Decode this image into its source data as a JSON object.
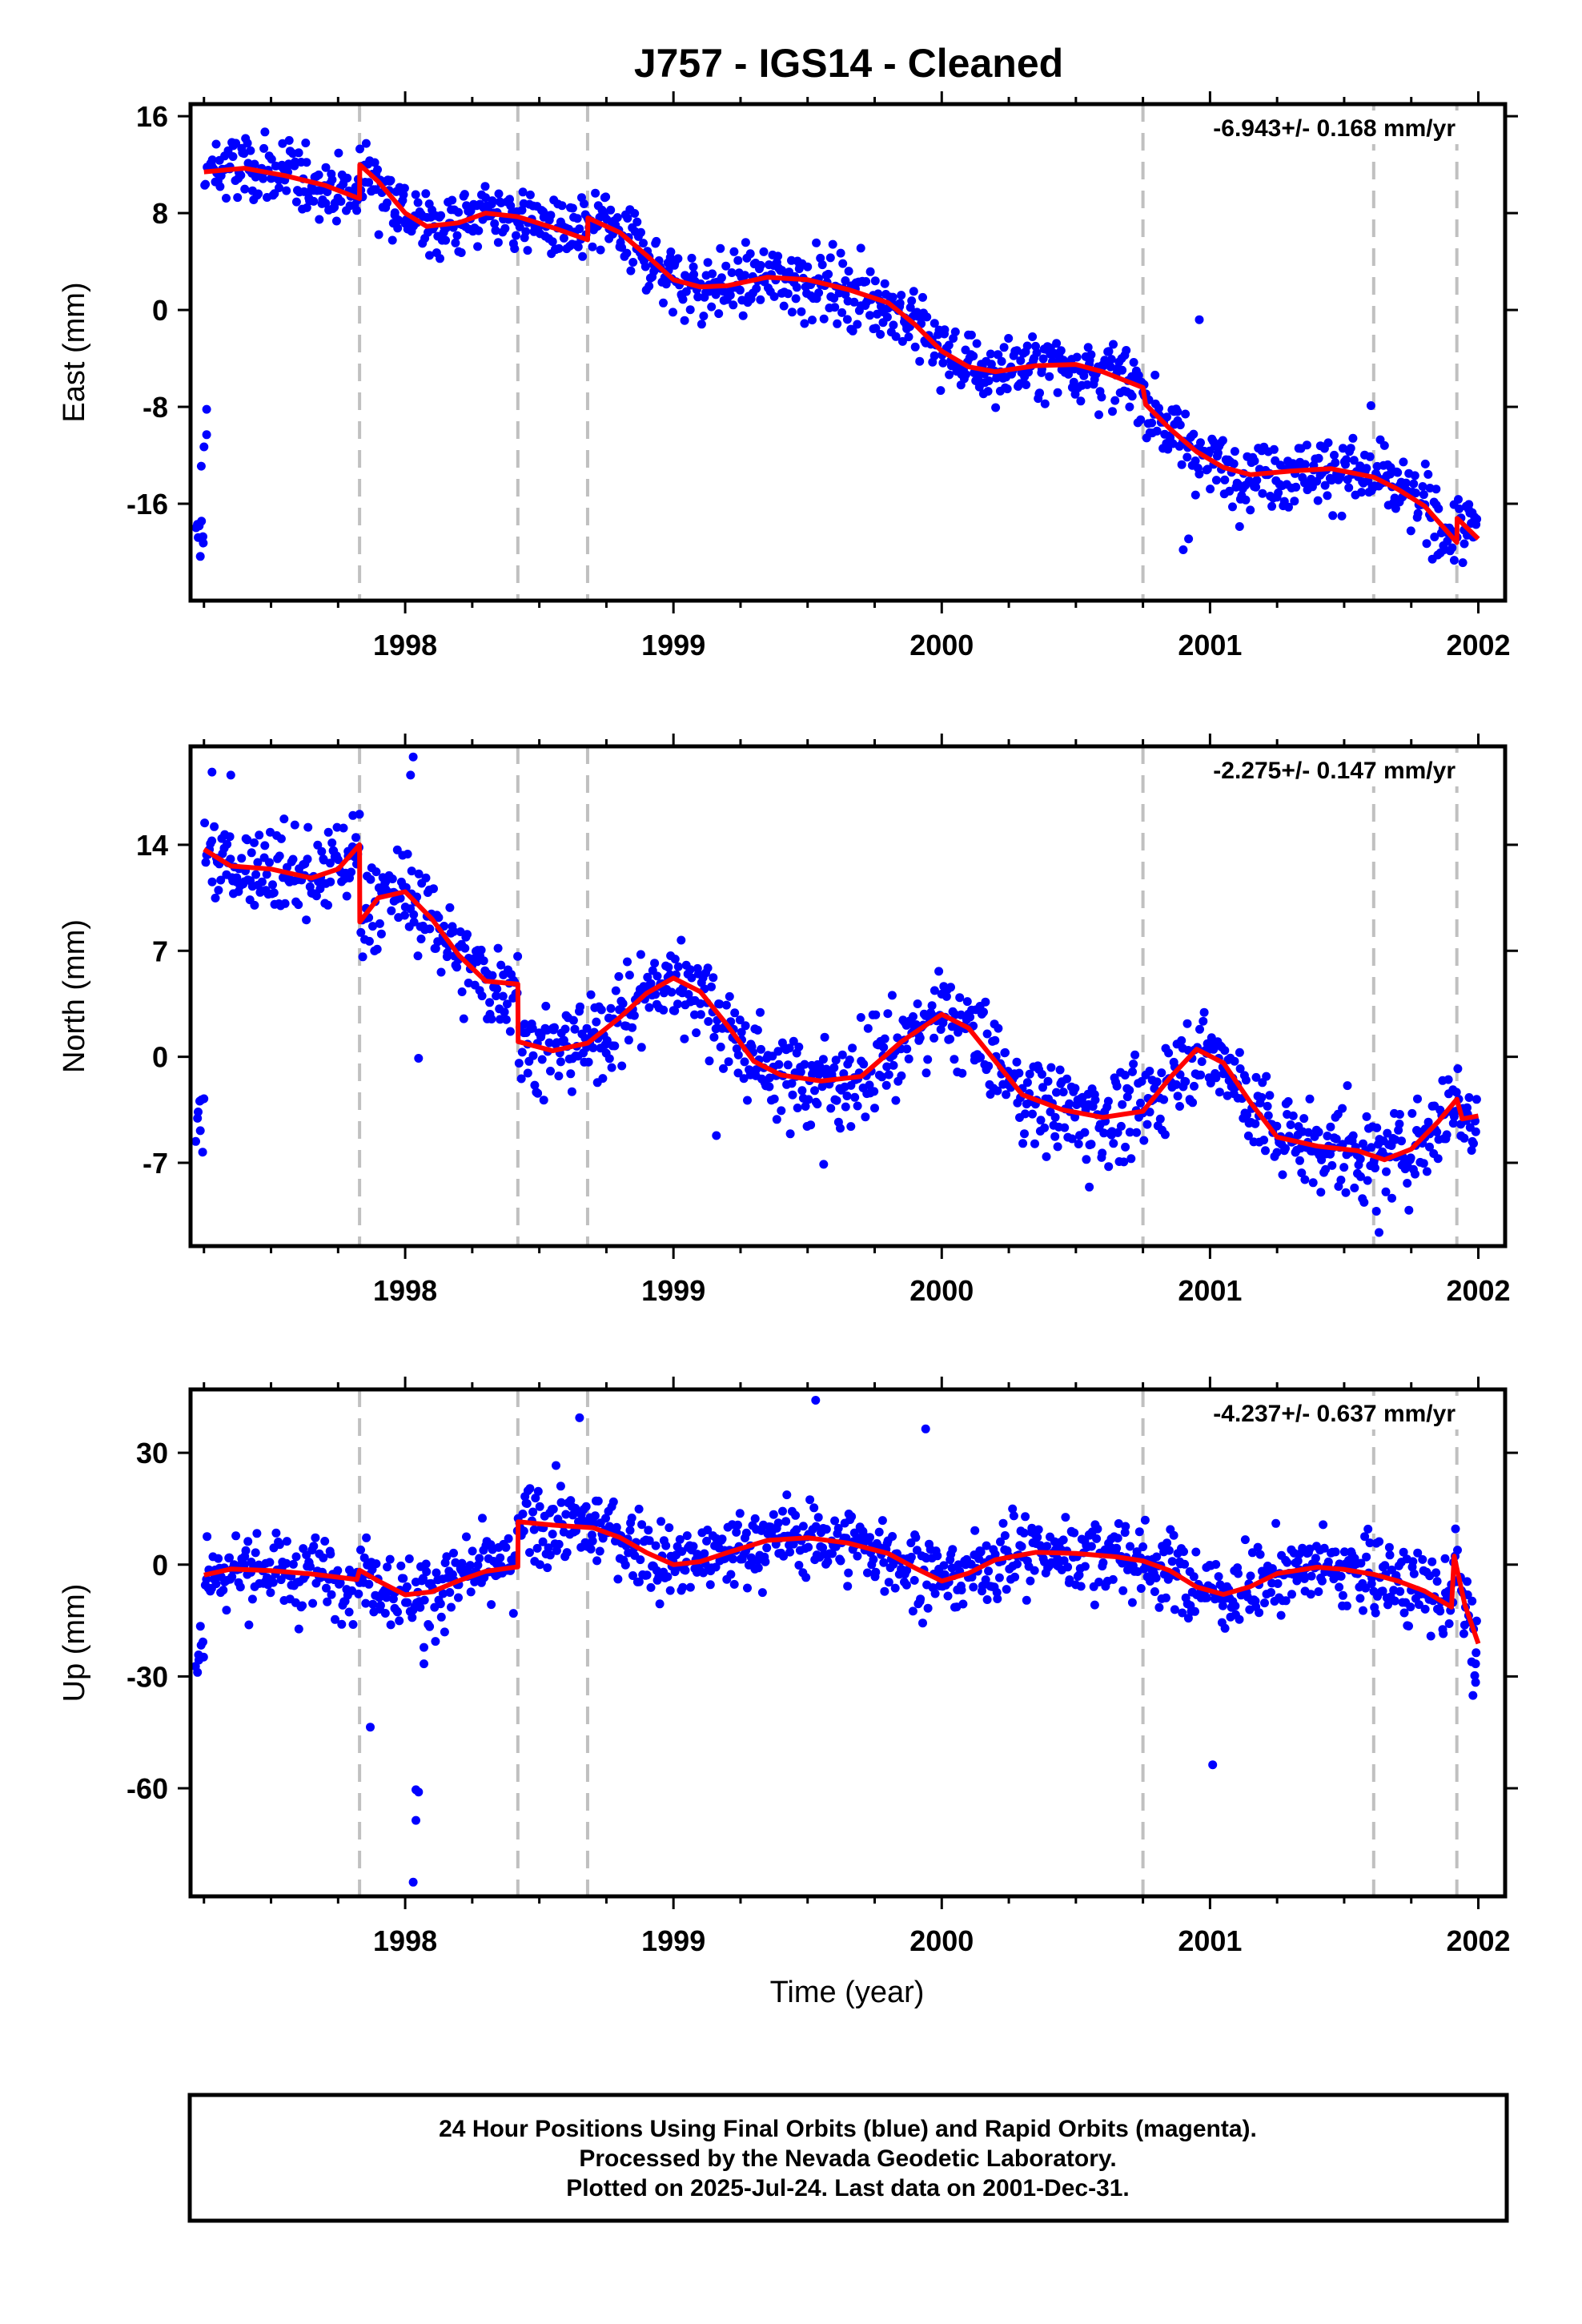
{
  "title": "J757  - IGS14 - Cleaned",
  "xlabel": "Time (year)",
  "x_ticks": [
    "1998",
    "1999",
    "2000",
    "2001",
    "2002"
  ],
  "x_range": [
    1997.2,
    2002.1
  ],
  "event_lines": [
    1997.83,
    1998.42,
    1998.68,
    2000.75,
    2001.61,
    2001.92
  ],
  "colors": {
    "points": "#0000ff",
    "model": "#ff0000",
    "event_lines": "#c0c0c0"
  },
  "footer": {
    "line1": "24 Hour Positions Using Final Orbits (blue) and Rapid Orbits (magenta).",
    "line2": "Processed by the Nevada Geodetic Laboratory.",
    "line3": "Plotted on 2025-Jul-24. Last data on 2001-Dec-31."
  },
  "chart_data": [
    {
      "type": "scatter",
      "ylabel": "East (mm)",
      "rate": "-6.943+/- 0.168 mm/yr",
      "ylim": [
        -24,
        17
      ],
      "y_ticks": [
        16,
        8,
        0,
        -8,
        -16
      ],
      "model": [
        [
          1997.25,
          11.4
        ],
        [
          1997.4,
          11.7
        ],
        [
          1997.55,
          11.1
        ],
        [
          1997.7,
          10.3
        ],
        [
          1997.83,
          9.2
        ],
        [
          1997.831,
          12.0
        ],
        [
          1997.9,
          10.6
        ],
        [
          1998.0,
          8.0
        ],
        [
          1998.08,
          6.9
        ],
        [
          1998.2,
          7.2
        ],
        [
          1998.3,
          8.0
        ],
        [
          1998.42,
          7.7
        ],
        [
          1998.55,
          6.8
        ],
        [
          1998.68,
          5.8
        ],
        [
          1998.681,
          7.6
        ],
        [
          1998.8,
          6.4
        ],
        [
          1998.9,
          4.5
        ],
        [
          1999.0,
          2.5
        ],
        [
          1999.1,
          1.9
        ],
        [
          1999.2,
          2.0
        ],
        [
          1999.35,
          2.7
        ],
        [
          1999.5,
          2.5
        ],
        [
          1999.65,
          1.7
        ],
        [
          1999.8,
          0.6
        ],
        [
          1999.9,
          -1.2
        ],
        [
          2000.0,
          -3.4
        ],
        [
          2000.1,
          -4.7
        ],
        [
          2000.2,
          -5.1
        ],
        [
          2000.35,
          -4.6
        ],
        [
          2000.5,
          -4.5
        ],
        [
          2000.6,
          -5.1
        ],
        [
          2000.75,
          -6.4
        ],
        [
          2000.76,
          -7.8
        ],
        [
          2000.85,
          -9.8
        ],
        [
          2000.95,
          -11.7
        ],
        [
          2001.05,
          -13.0
        ],
        [
          2001.15,
          -13.6
        ],
        [
          2001.3,
          -13.3
        ],
        [
          2001.45,
          -13.1
        ],
        [
          2001.61,
          -13.8
        ],
        [
          2001.7,
          -14.8
        ],
        [
          2001.8,
          -16.2
        ],
        [
          2001.92,
          -19.2
        ],
        [
          2001.921,
          -17.2
        ],
        [
          2002.0,
          -18.9
        ]
      ],
      "outliers": [
        [
          1997.26,
          -8.2
        ],
        [
          1997.26,
          -10.3
        ],
        [
          1997.25,
          -11.3
        ],
        [
          1997.24,
          -12.9
        ],
        [
          2000.96,
          -0.8
        ],
        [
          2000.92,
          -18.9
        ],
        [
          2000.9,
          -19.8
        ],
        [
          2001.6,
          -7.9
        ]
      ]
    },
    {
      "type": "scatter",
      "ylabel": "North (mm)",
      "rate": "-2.275+/- 0.147 mm/yr",
      "ylim": [
        -12.5,
        20.5
      ],
      "y_ticks": [
        14,
        7,
        0,
        -7
      ],
      "model": [
        [
          1997.25,
          13.7
        ],
        [
          1997.35,
          12.6
        ],
        [
          1997.5,
          12.4
        ],
        [
          1997.65,
          11.8
        ],
        [
          1997.75,
          12.4
        ],
        [
          1997.83,
          14.0
        ],
        [
          1997.831,
          8.9
        ],
        [
          1997.9,
          10.5
        ],
        [
          1998.0,
          10.9
        ],
        [
          1998.1,
          9.1
        ],
        [
          1998.2,
          6.7
        ],
        [
          1998.3,
          5.0
        ],
        [
          1998.42,
          4.8
        ],
        [
          1998.421,
          1.0
        ],
        [
          1998.55,
          0.4
        ],
        [
          1998.68,
          0.9
        ],
        [
          1998.8,
          2.6
        ],
        [
          1998.9,
          4.2
        ],
        [
          1999.0,
          5.2
        ],
        [
          1999.1,
          4.3
        ],
        [
          1999.2,
          2.1
        ],
        [
          1999.3,
          -0.3
        ],
        [
          1999.4,
          -1.2
        ],
        [
          1999.55,
          -1.6
        ],
        [
          1999.7,
          -1.3
        ],
        [
          1999.85,
          1.0
        ],
        [
          2000.0,
          2.8
        ],
        [
          2000.1,
          1.9
        ],
        [
          2000.2,
          -0.3
        ],
        [
          2000.3,
          -2.5
        ],
        [
          2000.45,
          -3.5
        ],
        [
          2000.6,
          -4.0
        ],
        [
          2000.75,
          -3.6
        ],
        [
          2000.85,
          -1.4
        ],
        [
          2000.95,
          0.5
        ],
        [
          2001.05,
          -0.4
        ],
        [
          2001.15,
          -3.0
        ],
        [
          2001.25,
          -5.3
        ],
        [
          2001.4,
          -5.9
        ],
        [
          2001.55,
          -6.2
        ],
        [
          2001.65,
          -6.8
        ],
        [
          2001.75,
          -6.1
        ],
        [
          2001.85,
          -4.3
        ],
        [
          2001.92,
          -2.8
        ],
        [
          2001.94,
          -4.1
        ],
        [
          2002.0,
          -3.9
        ]
      ],
      "outliers": [
        [
          1998.03,
          19.8
        ],
        [
          1998.02,
          18.6
        ],
        [
          1997.28,
          18.8
        ],
        [
          1997.35,
          18.6
        ],
        [
          1998.05,
          -0.1
        ],
        [
          2001.63,
          -11.6
        ],
        [
          2001.62,
          -10.2
        ],
        [
          1999.16,
          -5.2
        ],
        [
          1999.56,
          -7.1
        ],
        [
          2000.55,
          -8.6
        ]
      ]
    },
    {
      "type": "scatter",
      "ylabel": "Up (mm)",
      "rate": "-4.237+/- 0.637 mm/yr",
      "ylim": [
        -89,
        47
      ],
      "y_ticks": [
        30,
        0,
        -30,
        -60
      ],
      "model": [
        [
          1997.25,
          -2.8
        ],
        [
          1997.35,
          -1.2
        ],
        [
          1997.5,
          -1.6
        ],
        [
          1997.65,
          -2.5
        ],
        [
          1997.82,
          -4.0
        ],
        [
          1997.83,
          -1.5
        ],
        [
          1997.9,
          -4.4
        ],
        [
          1998.0,
          -8.1
        ],
        [
          1998.1,
          -7.3
        ],
        [
          1998.2,
          -4.3
        ],
        [
          1998.3,
          -1.8
        ],
        [
          1998.42,
          -0.6
        ],
        [
          1998.421,
          11.5
        ],
        [
          1998.55,
          10.6
        ],
        [
          1998.7,
          9.9
        ],
        [
          1998.8,
          7.3
        ],
        [
          1998.9,
          3.2
        ],
        [
          1999.0,
          0.0
        ],
        [
          1999.1,
          0.8
        ],
        [
          1999.2,
          3.2
        ],
        [
          1999.35,
          6.5
        ],
        [
          1999.5,
          7.2
        ],
        [
          1999.65,
          5.8
        ],
        [
          1999.8,
          3.0
        ],
        [
          1999.9,
          -0.9
        ],
        [
          2000.0,
          -4.4
        ],
        [
          2000.1,
          -2.3
        ],
        [
          2000.2,
          1.3
        ],
        [
          2000.35,
          3.3
        ],
        [
          2000.5,
          3.0
        ],
        [
          2000.65,
          2.1
        ],
        [
          2000.75,
          1.0
        ],
        [
          2000.85,
          -1.6
        ],
        [
          2000.95,
          -6.0
        ],
        [
          2001.05,
          -8.0
        ],
        [
          2001.15,
          -5.9
        ],
        [
          2001.25,
          -2.4
        ],
        [
          2001.4,
          -0.7
        ],
        [
          2001.5,
          -1.3
        ],
        [
          2001.61,
          -2.6
        ],
        [
          2001.7,
          -4.4
        ],
        [
          2001.8,
          -7.1
        ],
        [
          2001.9,
          -11.4
        ],
        [
          2001.91,
          2.3
        ],
        [
          2001.95,
          -10.8
        ],
        [
          2002.0,
          -21.2
        ]
      ],
      "outliers": [
        [
          1998.03,
          -85.2
        ],
        [
          1998.04,
          -60.4
        ],
        [
          1998.05,
          -61.0
        ],
        [
          1998.04,
          -68.6
        ],
        [
          1997.87,
          -43.6
        ],
        [
          1998.07,
          -26.6
        ],
        [
          1998.07,
          -22.2
        ],
        [
          2001.01,
          -53.7
        ],
        [
          1999.53,
          44.1
        ],
        [
          1998.65,
          39.4
        ],
        [
          1999.94,
          36.4
        ],
        [
          2001.98,
          -35.1
        ],
        [
          2001.99,
          -31.6
        ],
        [
          2001.99,
          -26.6
        ]
      ]
    }
  ]
}
